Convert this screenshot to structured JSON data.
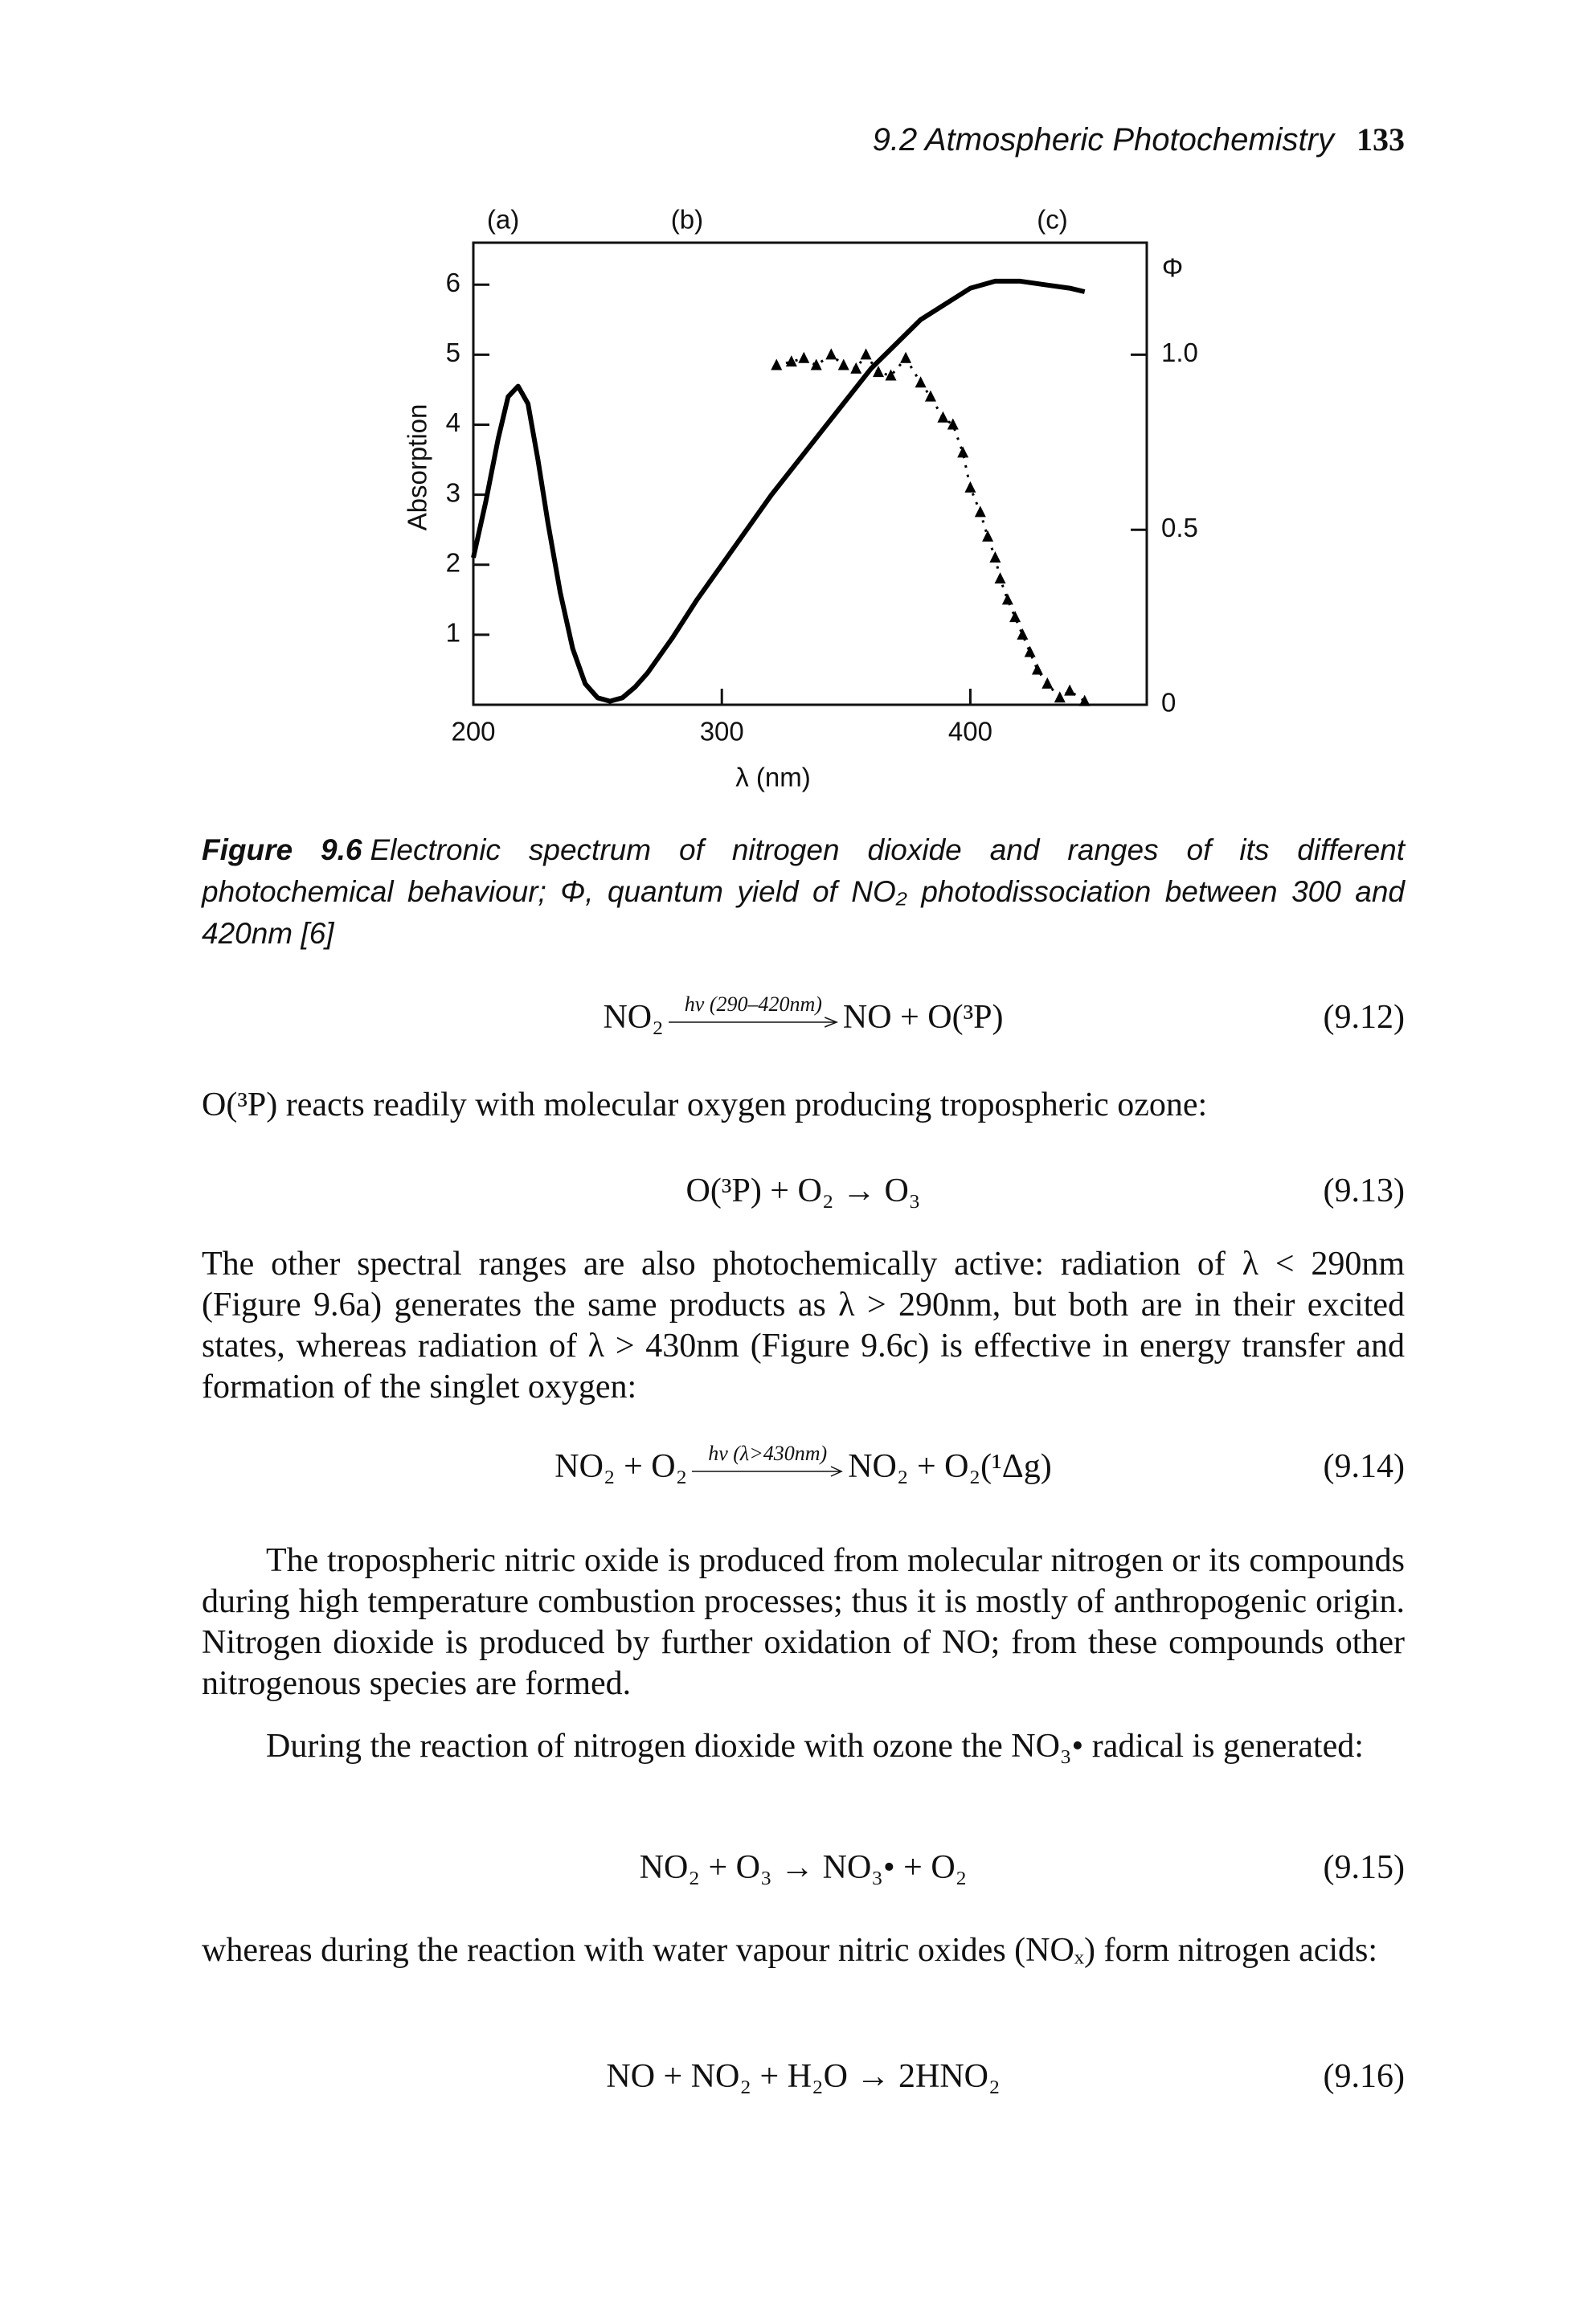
{
  "header": {
    "section": "9.2  Atmospheric Photochemistry",
    "page": "133"
  },
  "chart_data": {
    "type": "line",
    "xlabel": "λ (nm)",
    "ylabel": "Absorption",
    "y2label": "Φ",
    "xlim": [
      200,
      471
    ],
    "xticks": [
      200,
      300,
      400
    ],
    "ylim": [
      0,
      6.6
    ],
    "yticks": [
      1,
      2,
      3,
      4,
      5,
      6
    ],
    "y2lim": [
      0,
      1.32
    ],
    "y2ticks": [
      0,
      0.5,
      {
        "value": 1.0,
        "label": "1.0"
      }
    ],
    "annotations": [
      {
        "text": "(a)",
        "x": 212
      },
      {
        "text": "(b)",
        "x": 286
      },
      {
        "text": "(c)",
        "x": 433
      }
    ],
    "series": [
      {
        "type": "line",
        "color": "#000000",
        "x": [
          200,
          205,
          210,
          214,
          218,
          222,
          226,
          230,
          235,
          240,
          245,
          250,
          255,
          260,
          265,
          270,
          280,
          290,
          300,
          320,
          340,
          360,
          380,
          400,
          410,
          420,
          430,
          440,
          446
        ],
        "values": [
          2.1,
          2.9,
          3.8,
          4.4,
          4.55,
          4.3,
          3.5,
          2.6,
          1.6,
          0.8,
          0.3,
          0.1,
          0.05,
          0.1,
          0.25,
          0.45,
          0.95,
          1.5,
          2.0,
          3.0,
          3.9,
          4.8,
          5.5,
          5.95,
          6.05,
          6.05,
          6.0,
          5.95,
          5.9
        ]
      },
      {
        "type": "scatter",
        "color": "#000000",
        "axis": "y2",
        "marker": "triangle",
        "x": [
          322,
          328,
          333,
          338,
          344,
          349,
          354,
          358,
          363,
          368,
          374,
          380,
          384,
          389,
          393,
          397,
          400,
          404,
          407,
          410,
          412,
          415,
          418,
          421,
          424,
          427,
          431,
          436,
          440,
          446
        ],
        "values": [
          0.97,
          0.98,
          0.99,
          0.97,
          1.0,
          0.97,
          0.96,
          1.0,
          0.95,
          0.94,
          0.99,
          0.92,
          0.88,
          0.82,
          0.8,
          0.72,
          0.62,
          0.55,
          0.48,
          0.42,
          0.36,
          0.3,
          0.25,
          0.2,
          0.15,
          0.1,
          0.06,
          0.02,
          0.04,
          0.01
        ]
      }
    ]
  },
  "caption": {
    "label": "Figure 9.6",
    "text": "Electronic spectrum of nitrogen dioxide and ranges of its different photochemical behaviour; Φ, quantum yield of NO₂ photodissociation between 300 and 420nm [6]"
  },
  "body": [
    {
      "kind": "equation",
      "lhs": "NO₂",
      "arrow_label": "hν (290–420nm)",
      "rhs": "NO + O(³P)",
      "number": "(9.12)"
    },
    {
      "kind": "paragraph",
      "indent": false,
      "text": "O(³P) reacts readily with molecular oxygen producing tropospheric ozone:"
    },
    {
      "kind": "equation",
      "lhs": "O(³P) + O₂ → O₃",
      "number": "(9.13)"
    },
    {
      "kind": "paragraph",
      "indent": false,
      "text": "The other spectral ranges are also photochemically active: radiation of λ < 290nm (Figure 9.6a) generates the same products as λ > 290nm, but both are in their excited states, whereas radiation of λ > 430nm (Figure 9.6c) is effective in energy transfer and formation of the singlet oxygen:"
    },
    {
      "kind": "equation",
      "lhs": "NO₂ + O₂",
      "arrow_label": "hν (λ>430nm)",
      "rhs": "NO₂ + O₂(¹Δg)",
      "number": "(9.14)"
    },
    {
      "kind": "paragraph",
      "indent": true,
      "text": "The tropospheric nitric oxide is produced from molecular nitrogen or its compounds during high temperature combustion processes; thus it is mostly of anthropogenic origin. Nitrogen dioxide is produced by further oxidation of NO; from these compounds other nitrogenous species are formed."
    },
    {
      "kind": "paragraph",
      "indent": true,
      "text": "During the reaction of nitrogen dioxide with ozone the NO₃• radical is generated:"
    },
    {
      "kind": "equation",
      "lhs": "NO₂ + O₃ → NO₃• + O₂",
      "number": "(9.15)"
    },
    {
      "kind": "paragraph",
      "indent": false,
      "text": "whereas during the reaction with water vapour nitric oxides (NOₓ) form nitrogen acids:"
    },
    {
      "kind": "equation",
      "lhs": "NO + NO₂ + H₂O → 2HNO₂",
      "number": "(9.16)"
    }
  ]
}
